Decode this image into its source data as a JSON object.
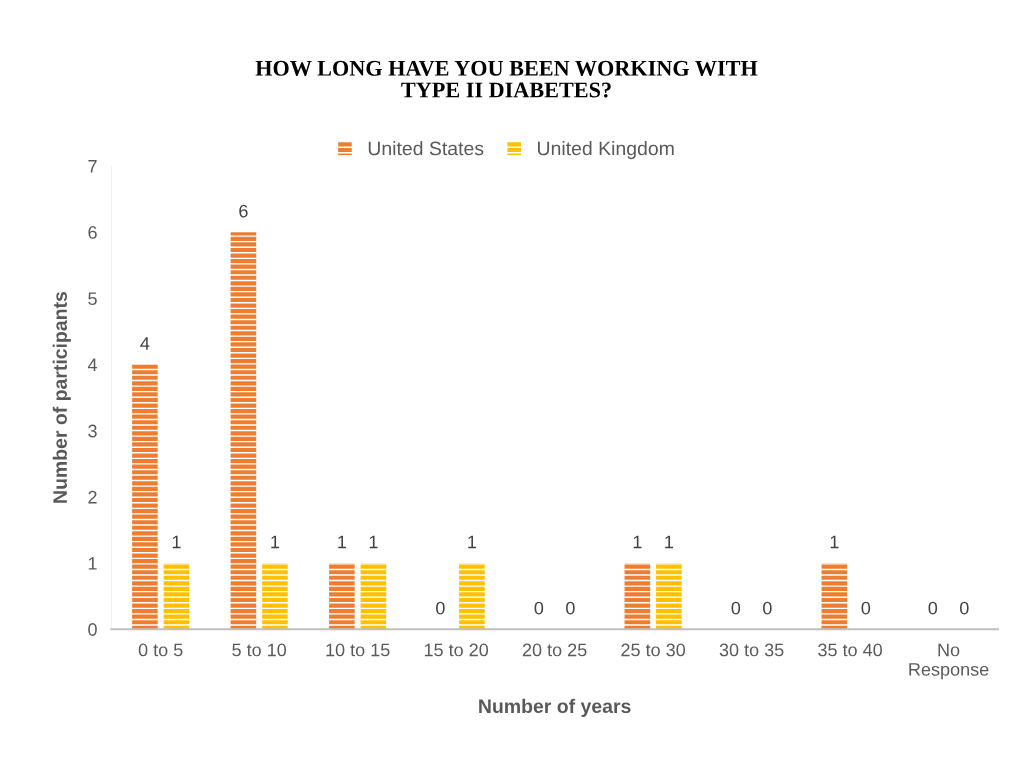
{
  "chart_data": {
    "type": "bar",
    "title": "HOW LONG HAVE YOU BEEN WORKING WITH\nTYPE II DIABETES?",
    "xlabel": "Number of years",
    "ylabel": "Number of participants",
    "categories": [
      "0 to 5",
      "5 to 10",
      "10 to 15",
      "15 to 20",
      "20 to 25",
      "25 to 30",
      "30 to 35",
      "35 to 40",
      "No\nResponse"
    ],
    "series": [
      {
        "name": "United States",
        "color": "#ed7d31",
        "values": [
          4,
          6,
          1,
          0,
          0,
          1,
          0,
          1,
          0
        ]
      },
      {
        "name": "United Kingdom",
        "color": "#ffc000",
        "values": [
          1,
          1,
          1,
          1,
          0,
          1,
          0,
          0,
          0
        ]
      }
    ],
    "ylim": [
      0,
      7
    ],
    "yticks": [
      0,
      1,
      2,
      3,
      4,
      5,
      6,
      7
    ],
    "data_labels": true,
    "grid": false,
    "legend": "top"
  }
}
